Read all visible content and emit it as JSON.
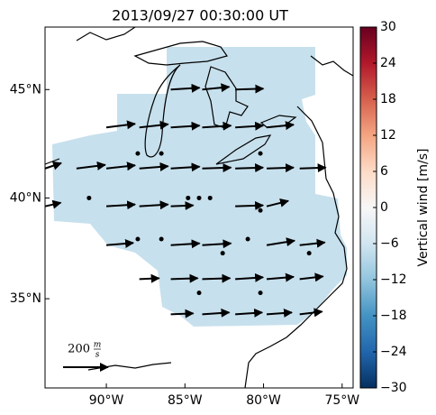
{
  "chart_data": {
    "type": "vector-map",
    "title": "2013/09/27 00:30:00 UT",
    "xlim": [
      -93.9,
      -74.3
    ],
    "ylim": [
      30.3,
      47.7
    ],
    "xticks": [
      {
        "value": -90,
        "label": "90°W"
      },
      {
        "value": -85,
        "label": "85°W"
      },
      {
        "value": -80,
        "label": "80°W"
      },
      {
        "value": -75,
        "label": "75°W"
      }
    ],
    "yticks": [
      {
        "value": 35,
        "label": "35°N"
      },
      {
        "value": 40,
        "label": "40°N"
      },
      {
        "value": 45,
        "label": "45°N"
      }
    ],
    "field_value": -7,
    "colorbar": {
      "label": "Vertical wind [m/s]",
      "clim": [
        -30,
        30
      ],
      "colors": [
        "#053061",
        "#2166ac",
        "#4393c3",
        "#92c5de",
        "#d1e5f0",
        "#f7f7f7",
        "#fddbc7",
        "#f4a582",
        "#d6604d",
        "#b2182b",
        "#67001f"
      ],
      "ticks": [
        {
          "value": -30,
          "label": "−30"
        },
        {
          "value": -24,
          "label": "−24"
        },
        {
          "value": -18,
          "label": "−18"
        },
        {
          "value": -12,
          "label": "−12"
        },
        {
          "value": -6,
          "label": "−6"
        },
        0,
        6,
        12,
        18,
        24,
        30
      ]
    },
    "key": {
      "value": 200,
      "label": "200",
      "unit_num": "m",
      "unit_den": "s"
    },
    "vectors": {
      "lon": [
        -85.9,
        -83.9,
        -81.8,
        -90.0,
        -87.9,
        -85.9,
        -83.9,
        -81.8,
        -79.8,
        -93.9,
        -91.9,
        -90.0,
        -87.9,
        -85.9,
        -83.9,
        -81.8,
        -79.8,
        -77.7,
        -93.9,
        -90.0,
        -87.9,
        -85.9,
        -81.8,
        -79.8,
        -90.0,
        -85.9,
        -83.9,
        -79.8,
        -77.7,
        -87.9,
        -85.9,
        -83.9,
        -81.8,
        -79.8,
        -77.7,
        -85.9,
        -83.9,
        -81.8,
        -79.8,
        -77.7,
        -88.0,
        -86.5,
        -80.2,
        -91.1,
        -84.8,
        -84.1,
        -83.4,
        -80.2,
        -88.0,
        -86.5,
        -82.6,
        -81.0,
        -77.1,
        -84.1,
        -80.2
      ],
      "lat": [
        45.0,
        45.0,
        45.0,
        43.3,
        43.3,
        43.3,
        43.3,
        43.3,
        43.3,
        41.4,
        41.4,
        41.4,
        41.4,
        41.4,
        41.4,
        41.4,
        41.4,
        41.4,
        39.6,
        39.6,
        39.6,
        39.6,
        39.6,
        39.6,
        37.7,
        37.7,
        37.7,
        37.7,
        37.7,
        36.0,
        36.0,
        36.0,
        36.0,
        36.0,
        36.0,
        34.2,
        34.2,
        34.2,
        34.2,
        34.2,
        42.1,
        42.1,
        42.1,
        40.0,
        40.0,
        40.0,
        40.0,
        39.4,
        38.0,
        38.0,
        37.3,
        38.0,
        37.3,
        35.3,
        35.3
      ],
      "u": [
        128,
        120,
        125,
        128,
        128,
        128,
        128,
        124,
        120,
        72,
        128,
        128,
        128,
        128,
        128,
        124,
        120,
        116,
        70,
        128,
        128,
        100,
        124,
        96,
        120,
        128,
        128,
        124,
        112,
        88,
        120,
        124,
        124,
        120,
        104,
        100,
        120,
        120,
        112,
        100,
        0,
        0,
        0,
        0,
        0,
        0,
        0,
        0,
        0,
        0,
        0,
        0,
        0,
        0,
        0
      ],
      "v": [
        8,
        12,
        4,
        16,
        14,
        8,
        8,
        8,
        12,
        24,
        16,
        14,
        10,
        8,
        4,
        4,
        4,
        4,
        16,
        8,
        8,
        4,
        4,
        24,
        10,
        8,
        8,
        20,
        12,
        4,
        4,
        4,
        8,
        10,
        12,
        4,
        8,
        8,
        8,
        12,
        0,
        0,
        0,
        0,
        0,
        0,
        0,
        0,
        0,
        0,
        0,
        0,
        0,
        0,
        0
      ]
    }
  }
}
